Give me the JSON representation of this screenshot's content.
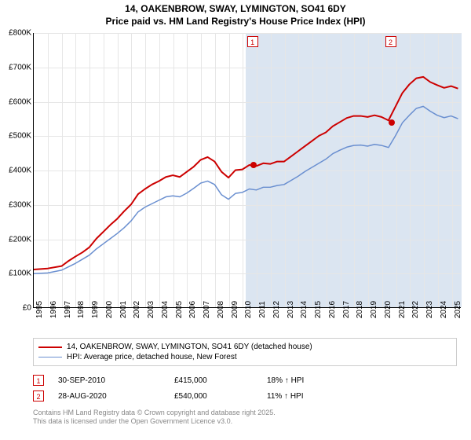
{
  "title_line1": "14, OAKENBROW, SWAY, LYMINGTON, SO41 6DY",
  "title_line2": "Price paid vs. HM Land Registry's House Price Index (HPI)",
  "chart": {
    "type": "line",
    "background_color": "#ffffff",
    "grid_color": "#e6e6e6",
    "xlim": [
      1995,
      2025.7
    ],
    "ylim": [
      0,
      800000
    ],
    "ytick_step": 100000,
    "yticks": [
      "£0",
      "£100K",
      "£200K",
      "£300K",
      "£400K",
      "£500K",
      "£600K",
      "£700K",
      "£800K"
    ],
    "xticks": [
      "1995",
      "1996",
      "1997",
      "1998",
      "1999",
      "2000",
      "2001",
      "2002",
      "2003",
      "2004",
      "2005",
      "2006",
      "2007",
      "2008",
      "2009",
      "2010",
      "2011",
      "2012",
      "2013",
      "2014",
      "2015",
      "2016",
      "2017",
      "2018",
      "2019",
      "2020",
      "2021",
      "2022",
      "2023",
      "2024",
      "2025"
    ],
    "blue_band": {
      "x_start": 2010.2,
      "x_end": 2025.7,
      "color": "#dbe5f1"
    },
    "series": [
      {
        "name": "14, OAKENBROW, SWAY, LYMINGTON, SO41 6DY (detached house)",
        "color": "#cc0000",
        "line_width": 2,
        "points": [
          [
            1995,
            110000
          ],
          [
            1996,
            113000
          ],
          [
            1997,
            120000
          ],
          [
            1997.5,
            135000
          ],
          [
            1998,
            148000
          ],
          [
            1998.5,
            160000
          ],
          [
            1999,
            175000
          ],
          [
            1999.5,
            200000
          ],
          [
            2000,
            220000
          ],
          [
            2000.5,
            240000
          ],
          [
            2001,
            258000
          ],
          [
            2001.5,
            280000
          ],
          [
            2002,
            300000
          ],
          [
            2002.5,
            330000
          ],
          [
            2003,
            345000
          ],
          [
            2003.5,
            358000
          ],
          [
            2004,
            368000
          ],
          [
            2004.5,
            380000
          ],
          [
            2005,
            385000
          ],
          [
            2005.5,
            380000
          ],
          [
            2006,
            395000
          ],
          [
            2006.5,
            410000
          ],
          [
            2007,
            430000
          ],
          [
            2007.5,
            438000
          ],
          [
            2008,
            425000
          ],
          [
            2008.5,
            395000
          ],
          [
            2009,
            378000
          ],
          [
            2009.5,
            400000
          ],
          [
            2010,
            402000
          ],
          [
            2010.5,
            415000
          ],
          [
            2011,
            412000
          ],
          [
            2011.5,
            420000
          ],
          [
            2012,
            418000
          ],
          [
            2012.5,
            425000
          ],
          [
            2013,
            425000
          ],
          [
            2013.5,
            440000
          ],
          [
            2014,
            455000
          ],
          [
            2014.5,
            470000
          ],
          [
            2015,
            485000
          ],
          [
            2015.5,
            500000
          ],
          [
            2016,
            510000
          ],
          [
            2016.5,
            528000
          ],
          [
            2017,
            540000
          ],
          [
            2017.5,
            552000
          ],
          [
            2018,
            558000
          ],
          [
            2018.5,
            558000
          ],
          [
            2019,
            555000
          ],
          [
            2019.5,
            560000
          ],
          [
            2020,
            555000
          ],
          [
            2020.5,
            545000
          ],
          [
            2021,
            585000
          ],
          [
            2021.5,
            625000
          ],
          [
            2022,
            650000
          ],
          [
            2022.5,
            668000
          ],
          [
            2023,
            672000
          ],
          [
            2023.5,
            657000
          ],
          [
            2024,
            648000
          ],
          [
            2024.5,
            640000
          ],
          [
            2025,
            645000
          ],
          [
            2025.5,
            638000
          ]
        ]
      },
      {
        "name": "HPI: Average price, detached house, New Forest",
        "color": "#6a8fd0",
        "line_width": 1.5,
        "points": [
          [
            1995,
            98000
          ],
          [
            1996,
            100000
          ],
          [
            1997,
            108000
          ],
          [
            1997.5,
            118000
          ],
          [
            1998,
            128000
          ],
          [
            1998.5,
            140000
          ],
          [
            1999,
            152000
          ],
          [
            1999.5,
            170000
          ],
          [
            2000,
            185000
          ],
          [
            2000.5,
            200000
          ],
          [
            2001,
            215000
          ],
          [
            2001.5,
            232000
          ],
          [
            2002,
            252000
          ],
          [
            2002.5,
            278000
          ],
          [
            2003,
            292000
          ],
          [
            2003.5,
            302000
          ],
          [
            2004,
            312000
          ],
          [
            2004.5,
            322000
          ],
          [
            2005,
            325000
          ],
          [
            2005.5,
            322000
          ],
          [
            2006,
            333000
          ],
          [
            2006.5,
            347000
          ],
          [
            2007,
            362000
          ],
          [
            2007.5,
            368000
          ],
          [
            2008,
            358000
          ],
          [
            2008.5,
            328000
          ],
          [
            2009,
            315000
          ],
          [
            2009.5,
            332000
          ],
          [
            2010,
            335000
          ],
          [
            2010.5,
            345000
          ],
          [
            2011,
            342000
          ],
          [
            2011.5,
            350000
          ],
          [
            2012,
            350000
          ],
          [
            2012.5,
            355000
          ],
          [
            2013,
            358000
          ],
          [
            2013.5,
            370000
          ],
          [
            2014,
            382000
          ],
          [
            2014.5,
            396000
          ],
          [
            2015,
            408000
          ],
          [
            2015.5,
            420000
          ],
          [
            2016,
            432000
          ],
          [
            2016.5,
            448000
          ],
          [
            2017,
            458000
          ],
          [
            2017.5,
            467000
          ],
          [
            2018,
            472000
          ],
          [
            2018.5,
            473000
          ],
          [
            2019,
            470000
          ],
          [
            2019.5,
            475000
          ],
          [
            2020,
            472000
          ],
          [
            2020.5,
            466000
          ],
          [
            2021,
            500000
          ],
          [
            2021.5,
            538000
          ],
          [
            2022,
            560000
          ],
          [
            2022.5,
            580000
          ],
          [
            2023,
            586000
          ],
          [
            2023.5,
            572000
          ],
          [
            2024,
            560000
          ],
          [
            2024.5,
            553000
          ],
          [
            2025,
            558000
          ],
          [
            2025.5,
            550000
          ]
        ]
      }
    ],
    "transaction_markers": [
      {
        "n": "1",
        "x": 2010.75,
        "price": 415000
      },
      {
        "n": "2",
        "x": 2020.66,
        "price": 540000
      }
    ]
  },
  "legend": {
    "rows": [
      {
        "color": "#cc0000",
        "width": 2,
        "label": "14, OAKENBROW, SWAY, LYMINGTON, SO41 6DY (detached house)"
      },
      {
        "color": "#6a8fd0",
        "width": 1.5,
        "label": "HPI: Average price, detached house, New Forest"
      }
    ]
  },
  "annotations": [
    {
      "n": "1",
      "date": "30-SEP-2010",
      "price": "£415,000",
      "pct": "18% ↑ HPI"
    },
    {
      "n": "2",
      "date": "28-AUG-2020",
      "price": "£540,000",
      "pct": "11% ↑ HPI"
    }
  ],
  "credit_line1": "Contains HM Land Registry data © Crown copyright and database right 2025.",
  "credit_line2": "This data is licensed under the Open Government Licence v3.0."
}
